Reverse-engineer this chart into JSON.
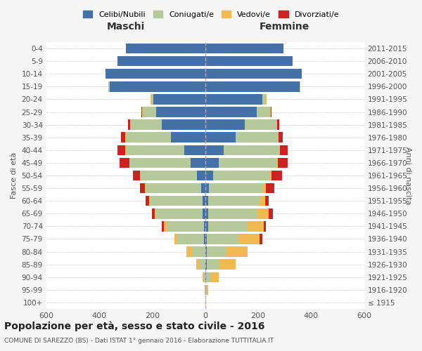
{
  "age_groups": [
    "100+",
    "95-99",
    "90-94",
    "85-89",
    "80-84",
    "75-79",
    "70-74",
    "65-69",
    "60-64",
    "55-59",
    "50-54",
    "45-49",
    "40-44",
    "35-39",
    "30-34",
    "25-29",
    "20-24",
    "15-19",
    "10-14",
    "5-9",
    "0-4"
  ],
  "birth_years": [
    "≤ 1915",
    "1916-1920",
    "1921-1925",
    "1926-1930",
    "1931-1935",
    "1936-1940",
    "1941-1945",
    "1946-1950",
    "1951-1955",
    "1956-1960",
    "1961-1965",
    "1966-1970",
    "1971-1975",
    "1976-1980",
    "1981-1985",
    "1986-1990",
    "1991-1995",
    "1996-2000",
    "2001-2005",
    "2006-2010",
    "2011-2015"
  ],
  "males": {
    "celibe": [
      0,
      0,
      0,
      0,
      0,
      5,
      5,
      10,
      10,
      15,
      30,
      55,
      80,
      130,
      165,
      185,
      195,
      360,
      375,
      330,
      300
    ],
    "coniugato": [
      0,
      0,
      5,
      20,
      50,
      100,
      140,
      175,
      200,
      210,
      215,
      230,
      220,
      170,
      115,
      50,
      10,
      5,
      0,
      0,
      0
    ],
    "vedovo": [
      0,
      2,
      5,
      15,
      20,
      10,
      10,
      5,
      2,
      2,
      2,
      2,
      2,
      2,
      2,
      2,
      2,
      0,
      0,
      0,
      0
    ],
    "divorziato": [
      0,
      0,
      0,
      0,
      0,
      0,
      8,
      10,
      12,
      18,
      25,
      35,
      30,
      15,
      10,
      5,
      0,
      0,
      0,
      0,
      0
    ]
  },
  "females": {
    "nubile": [
      0,
      0,
      2,
      5,
      5,
      5,
      10,
      10,
      10,
      15,
      30,
      50,
      70,
      115,
      150,
      195,
      215,
      355,
      365,
      330,
      295
    ],
    "coniugata": [
      0,
      5,
      20,
      50,
      75,
      120,
      150,
      185,
      195,
      200,
      215,
      220,
      210,
      160,
      120,
      50,
      15,
      5,
      0,
      0,
      0
    ],
    "vedova": [
      2,
      5,
      30,
      60,
      80,
      80,
      60,
      45,
      20,
      15,
      5,
      5,
      2,
      2,
      2,
      2,
      2,
      0,
      0,
      0,
      0
    ],
    "divorziata": [
      0,
      0,
      0,
      0,
      0,
      10,
      10,
      15,
      15,
      30,
      40,
      35,
      30,
      15,
      8,
      3,
      0,
      0,
      0,
      0,
      0
    ]
  },
  "colors": {
    "celibe": "#4472a8",
    "coniugato": "#b5c99a",
    "vedovo": "#f0b952",
    "divorziato": "#cc2222"
  },
  "legend_labels": [
    "Celibi/Nubili",
    "Coniugati/e",
    "Vedovi/e",
    "Divorziati/e"
  ],
  "xlim": 600,
  "title": "Popolazione per età, sesso e stato civile - 2016",
  "subtitle": "COMUNE DI SAREZZO (BS) - Dati ISTAT 1° gennaio 2016 - Elaborazione TUTTITALIA.IT",
  "xlabel_left": "Maschi",
  "xlabel_right": "Femmine",
  "ylabel_left": "Fasce di età",
  "ylabel_right": "Anni di nascita",
  "bg_color": "#f5f5f5",
  "plot_bg_color": "#ffffff"
}
